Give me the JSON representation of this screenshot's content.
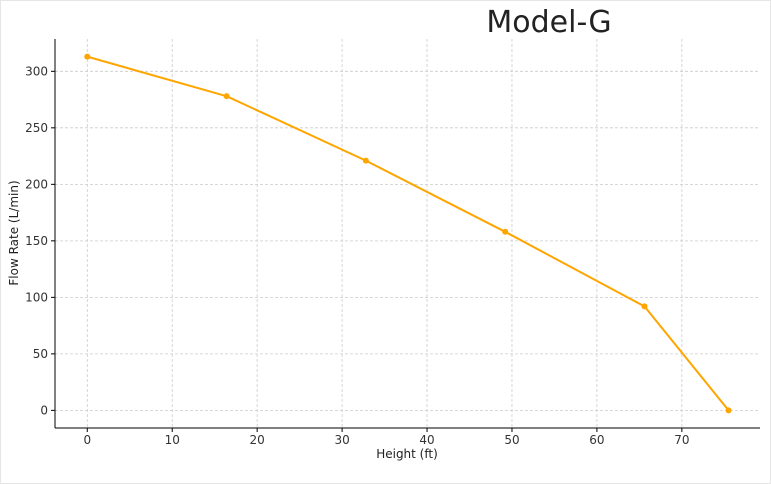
{
  "chart_data": {
    "type": "line",
    "title": "Model-G",
    "xlabel": "Height (ft)",
    "ylabel": "Flow Rate (L/min)",
    "xlim": [
      -3.8,
      79.2
    ],
    "ylim": [
      -15.6,
      328.6
    ],
    "xticks": [
      0,
      10,
      20,
      30,
      40,
      50,
      60,
      70
    ],
    "yticks": [
      0,
      50,
      100,
      150,
      200,
      250,
      300
    ],
    "grid": true,
    "series": [
      {
        "color": "#FFA500",
        "x": [
          0,
          16.4,
          32.8,
          49.2,
          65.6,
          75.5
        ],
        "y": [
          313,
          278,
          221,
          158,
          92,
          0
        ]
      }
    ]
  }
}
